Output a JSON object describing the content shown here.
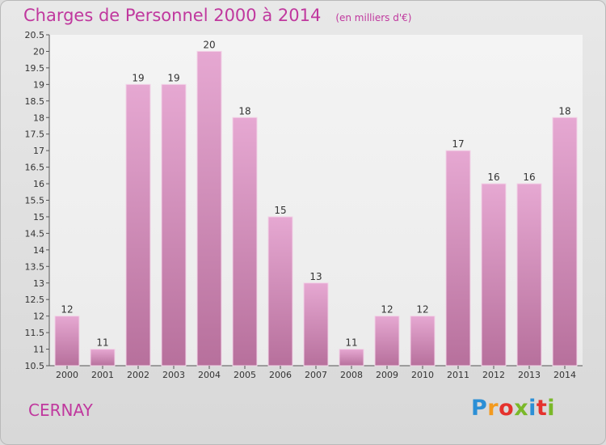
{
  "header": {
    "title": "Charges de Personnel 2000 à 2014",
    "subtitle": "(en milliers d'€)"
  },
  "footer": {
    "location": "CERNAY",
    "logo_text": "Proxiti",
    "logo_colors": [
      "#2b8fd6",
      "#f39a1e",
      "#e5322d",
      "#7ab829",
      "#2b8fd6",
      "#e5322d",
      "#7ab829"
    ]
  },
  "chart_data": {
    "type": "bar",
    "title": "Charges de Personnel 2000 à 2014",
    "subtitle": "(en milliers d'€)",
    "categories": [
      "2000",
      "2001",
      "2002",
      "2003",
      "2004",
      "2005",
      "2006",
      "2007",
      "2008",
      "2009",
      "2010",
      "2011",
      "2012",
      "2013",
      "2014"
    ],
    "values": [
      12,
      11,
      19,
      19,
      20,
      18,
      15,
      13,
      11,
      12,
      12,
      17,
      16,
      16,
      18
    ],
    "data_labels": [
      "12",
      "11",
      "19",
      "19",
      "20",
      "18",
      "15",
      "13",
      "11",
      "12",
      "12",
      "17",
      "16",
      "16",
      "18"
    ],
    "xlabel": "",
    "ylabel": "",
    "ylim": [
      10.5,
      20.5
    ],
    "yticks": [
      "10.5",
      "11",
      "11.5",
      "12",
      "12.5",
      "13",
      "13.5",
      "14",
      "14.5",
      "15",
      "15.5",
      "16",
      "16.5",
      "17",
      "17.5",
      "18",
      "18.5",
      "19",
      "19.5",
      "20",
      "20.5"
    ],
    "grid": false,
    "bar_color": "#d98fbd"
  }
}
